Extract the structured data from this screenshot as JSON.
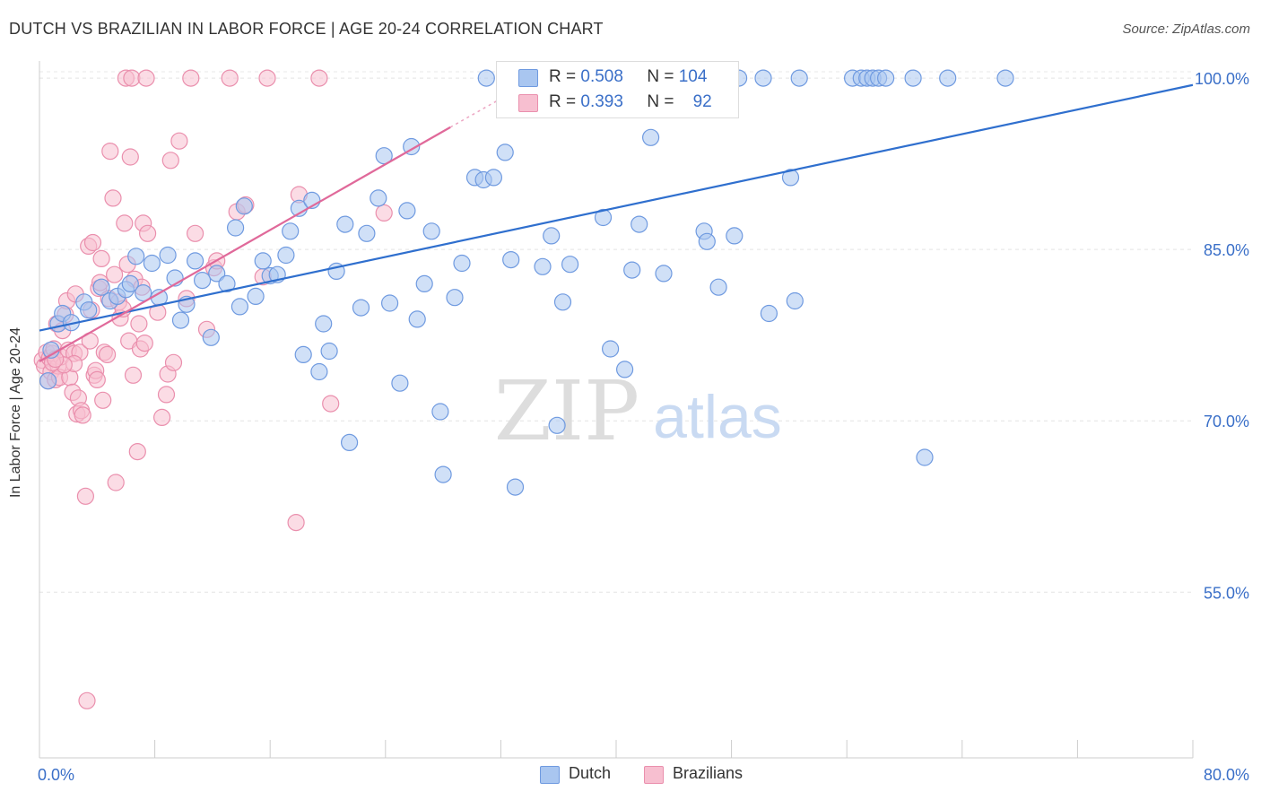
{
  "header": {
    "title": "DUTCH VS BRAZILIAN IN LABOR FORCE | AGE 20-24 CORRELATION CHART",
    "source": "Source: ZipAtlas.com"
  },
  "watermark": {
    "zip": "ZIP",
    "atlas": "atlas"
  },
  "legend": {
    "rows": [
      {
        "r_label": "R =",
        "r_value": "0.508",
        "n_label": "N =",
        "n_value": "104"
      },
      {
        "r_label": "R =",
        "r_value": "0.393",
        "n_label": "N =",
        "n_value": "92"
      }
    ]
  },
  "bottom_legend": {
    "dutch": "Dutch",
    "brazilians": "Brazilians"
  },
  "chart_data": {
    "type": "scatter",
    "title": "DUTCH VS BRAZILIAN IN LABOR FORCE | AGE 20-24 CORRELATION CHART",
    "xlabel": "",
    "ylabel": "In Labor Force | Age 20-24",
    "xlim": [
      0,
      80
    ],
    "ylim": [
      40.5,
      101.5
    ],
    "x_tick_labels": [
      "0.0%",
      "80.0%"
    ],
    "y_ticks": [
      55,
      70,
      85,
      100
    ],
    "y_tick_labels": [
      "55.0%",
      "70.0%",
      "85.0%",
      "100.0%"
    ],
    "grid": true,
    "legend_position": "top-center",
    "colors": {
      "dutch_fill": "#a9c6f0",
      "dutch_stroke": "#6f9ae0",
      "dutch_line": "#2f6fce",
      "brazilians_fill": "#f7bfd0",
      "brazilians_stroke": "#ea8fad",
      "brazilians_line": "#e0699a",
      "tick_label": "#3a6fc8"
    },
    "series": [
      {
        "name": "Dutch",
        "trend": {
          "x": [
            0,
            80
          ],
          "y": [
            77.9,
            99.4
          ]
        },
        "points": [
          [
            0.6,
            73.5
          ],
          [
            0.8,
            76.2
          ],
          [
            1.3,
            78.5
          ],
          [
            1.6,
            79.4
          ],
          [
            2.2,
            78.6
          ],
          [
            3.1,
            80.4
          ],
          [
            3.4,
            79.7
          ],
          [
            4.3,
            81.7
          ],
          [
            4.9,
            80.5
          ],
          [
            5.4,
            80.9
          ],
          [
            6.0,
            81.5
          ],
          [
            6.3,
            82.0
          ],
          [
            6.7,
            84.4
          ],
          [
            7.2,
            81.2
          ],
          [
            7.8,
            83.8
          ],
          [
            8.3,
            80.8
          ],
          [
            8.9,
            84.5
          ],
          [
            9.4,
            82.5
          ],
          [
            9.8,
            78.8
          ],
          [
            10.2,
            80.2
          ],
          [
            10.8,
            84.0
          ],
          [
            11.3,
            82.3
          ],
          [
            11.9,
            77.3
          ],
          [
            12.3,
            82.9
          ],
          [
            13.0,
            82.0
          ],
          [
            13.6,
            86.9
          ],
          [
            13.9,
            80.0
          ],
          [
            14.2,
            88.8
          ],
          [
            15.0,
            80.9
          ],
          [
            15.5,
            84.0
          ],
          [
            16.0,
            82.7
          ],
          [
            16.5,
            82.8
          ],
          [
            17.1,
            84.5
          ],
          [
            17.4,
            86.6
          ],
          [
            18.0,
            88.6
          ],
          [
            18.3,
            75.8
          ],
          [
            18.9,
            89.3
          ],
          [
            19.4,
            74.3
          ],
          [
            19.7,
            78.5
          ],
          [
            20.1,
            76.1
          ],
          [
            20.6,
            83.1
          ],
          [
            21.2,
            87.2
          ],
          [
            21.5,
            68.1
          ],
          [
            22.3,
            79.9
          ],
          [
            22.7,
            86.4
          ],
          [
            23.5,
            89.5
          ],
          [
            23.9,
            93.2
          ],
          [
            24.3,
            80.3
          ],
          [
            25.0,
            73.3
          ],
          [
            25.5,
            88.4
          ],
          [
            25.8,
            94.0
          ],
          [
            26.2,
            78.9
          ],
          [
            26.7,
            82.0
          ],
          [
            27.2,
            86.6
          ],
          [
            27.8,
            70.8
          ],
          [
            28.0,
            65.3
          ],
          [
            28.8,
            80.8
          ],
          [
            29.3,
            83.8
          ],
          [
            30.2,
            91.3
          ],
          [
            30.8,
            91.1
          ],
          [
            31.0,
            100.0
          ],
          [
            31.5,
            91.3
          ],
          [
            32.3,
            93.5
          ],
          [
            32.7,
            84.1
          ],
          [
            33.0,
            64.2
          ],
          [
            34.6,
            100.0
          ],
          [
            34.9,
            83.5
          ],
          [
            35.5,
            86.2
          ],
          [
            35.9,
            69.6
          ],
          [
            36.3,
            80.4
          ],
          [
            36.8,
            83.7
          ],
          [
            37.6,
            100.0
          ],
          [
            38.3,
            100.0
          ],
          [
            39.1,
            87.8
          ],
          [
            39.6,
            76.3
          ],
          [
            40.3,
            100.0
          ],
          [
            40.6,
            74.5
          ],
          [
            41.1,
            83.2
          ],
          [
            41.6,
            87.2
          ],
          [
            42.4,
            94.8
          ],
          [
            43.3,
            82.9
          ],
          [
            43.8,
            100.0
          ],
          [
            45.2,
            100.0
          ],
          [
            46.1,
            86.6
          ],
          [
            46.3,
            85.7
          ],
          [
            46.9,
            100.0
          ],
          [
            47.1,
            81.7
          ],
          [
            48.2,
            86.2
          ],
          [
            48.5,
            100.0
          ],
          [
            50.2,
            100.0
          ],
          [
            50.6,
            79.4
          ],
          [
            52.1,
            91.3
          ],
          [
            52.4,
            80.5
          ],
          [
            52.7,
            100.0
          ],
          [
            56.4,
            100.0
          ],
          [
            57.0,
            100.0
          ],
          [
            57.4,
            100.0
          ],
          [
            57.8,
            100.0
          ],
          [
            58.2,
            100.0
          ],
          [
            58.7,
            100.0
          ],
          [
            60.6,
            100.0
          ],
          [
            61.4,
            66.8
          ],
          [
            63.0,
            100.0
          ],
          [
            67.0,
            100.0
          ]
        ]
      },
      {
        "name": "Brazilians",
        "trend": {
          "x": [
            0,
            28.5,
            32
          ],
          "y": [
            75.2,
            95.7,
            98.2
          ]
        },
        "points": [
          [
            0.2,
            75.3
          ],
          [
            0.35,
            74.8
          ],
          [
            0.5,
            76.0
          ],
          [
            0.6,
            73.5
          ],
          [
            0.7,
            75.5
          ],
          [
            0.8,
            74.3
          ],
          [
            0.9,
            75.9
          ],
          [
            1.0,
            76.3
          ],
          [
            1.1,
            73.6
          ],
          [
            1.2,
            78.5
          ],
          [
            1.3,
            74.8
          ],
          [
            1.4,
            73.8
          ],
          [
            1.5,
            75.6
          ],
          [
            1.6,
            77.9
          ],
          [
            1.8,
            79.3
          ],
          [
            1.9,
            80.5
          ],
          [
            2.0,
            76.2
          ],
          [
            2.1,
            73.8
          ],
          [
            2.3,
            72.5
          ],
          [
            2.4,
            75.9
          ],
          [
            2.5,
            81.1
          ],
          [
            2.6,
            70.6
          ],
          [
            2.7,
            72.0
          ],
          [
            2.8,
            76.0
          ],
          [
            2.9,
            70.9
          ],
          [
            3.0,
            70.5
          ],
          [
            3.2,
            63.4
          ],
          [
            3.3,
            45.5
          ],
          [
            3.4,
            85.3
          ],
          [
            3.5,
            77.0
          ],
          [
            3.6,
            79.7
          ],
          [
            3.7,
            85.6
          ],
          [
            3.8,
            74.0
          ],
          [
            3.9,
            74.4
          ],
          [
            4.0,
            73.6
          ],
          [
            4.1,
            81.6
          ],
          [
            4.2,
            82.1
          ],
          [
            4.3,
            84.2
          ],
          [
            4.4,
            71.8
          ],
          [
            4.5,
            76.0
          ],
          [
            4.7,
            75.8
          ],
          [
            4.8,
            80.7
          ],
          [
            4.9,
            93.6
          ],
          [
            5.1,
            89.5
          ],
          [
            5.2,
            82.8
          ],
          [
            5.3,
            64.6
          ],
          [
            5.5,
            80.4
          ],
          [
            5.6,
            79.0
          ],
          [
            5.8,
            79.8
          ],
          [
            5.9,
            87.3
          ],
          [
            6.1,
            83.7
          ],
          [
            6.2,
            77.0
          ],
          [
            6.3,
            93.1
          ],
          [
            6.5,
            74.0
          ],
          [
            6.6,
            82.4
          ],
          [
            6.8,
            67.3
          ],
          [
            6.9,
            78.5
          ],
          [
            7.0,
            76.3
          ],
          [
            7.1,
            81.7
          ],
          [
            7.2,
            87.3
          ],
          [
            7.3,
            76.8
          ],
          [
            7.5,
            86.4
          ],
          [
            8.2,
            79.5
          ],
          [
            8.5,
            70.3
          ],
          [
            8.8,
            72.3
          ],
          [
            8.9,
            74.1
          ],
          [
            9.1,
            92.8
          ],
          [
            9.3,
            75.1
          ],
          [
            9.7,
            94.5
          ],
          [
            10.2,
            80.7
          ],
          [
            10.8,
            86.4
          ],
          [
            11.6,
            78.0
          ],
          [
            12.1,
            83.4
          ],
          [
            12.3,
            84.0
          ],
          [
            13.7,
            88.3
          ],
          [
            14.3,
            88.9
          ],
          [
            15.5,
            82.6
          ],
          [
            17.8,
            61.1
          ],
          [
            18.0,
            89.8
          ],
          [
            20.2,
            71.5
          ],
          [
            23.9,
            88.2
          ],
          [
            6.0,
            100.0
          ],
          [
            6.4,
            100.0
          ],
          [
            7.4,
            100.0
          ],
          [
            10.5,
            100.0
          ],
          [
            13.2,
            100.0
          ],
          [
            15.8,
            100.0
          ],
          [
            19.4,
            100.0
          ],
          [
            2.4,
            75.0
          ],
          [
            1.7,
            74.9
          ],
          [
            0.9,
            75.1
          ],
          [
            1.1,
            75.4
          ]
        ]
      }
    ]
  }
}
